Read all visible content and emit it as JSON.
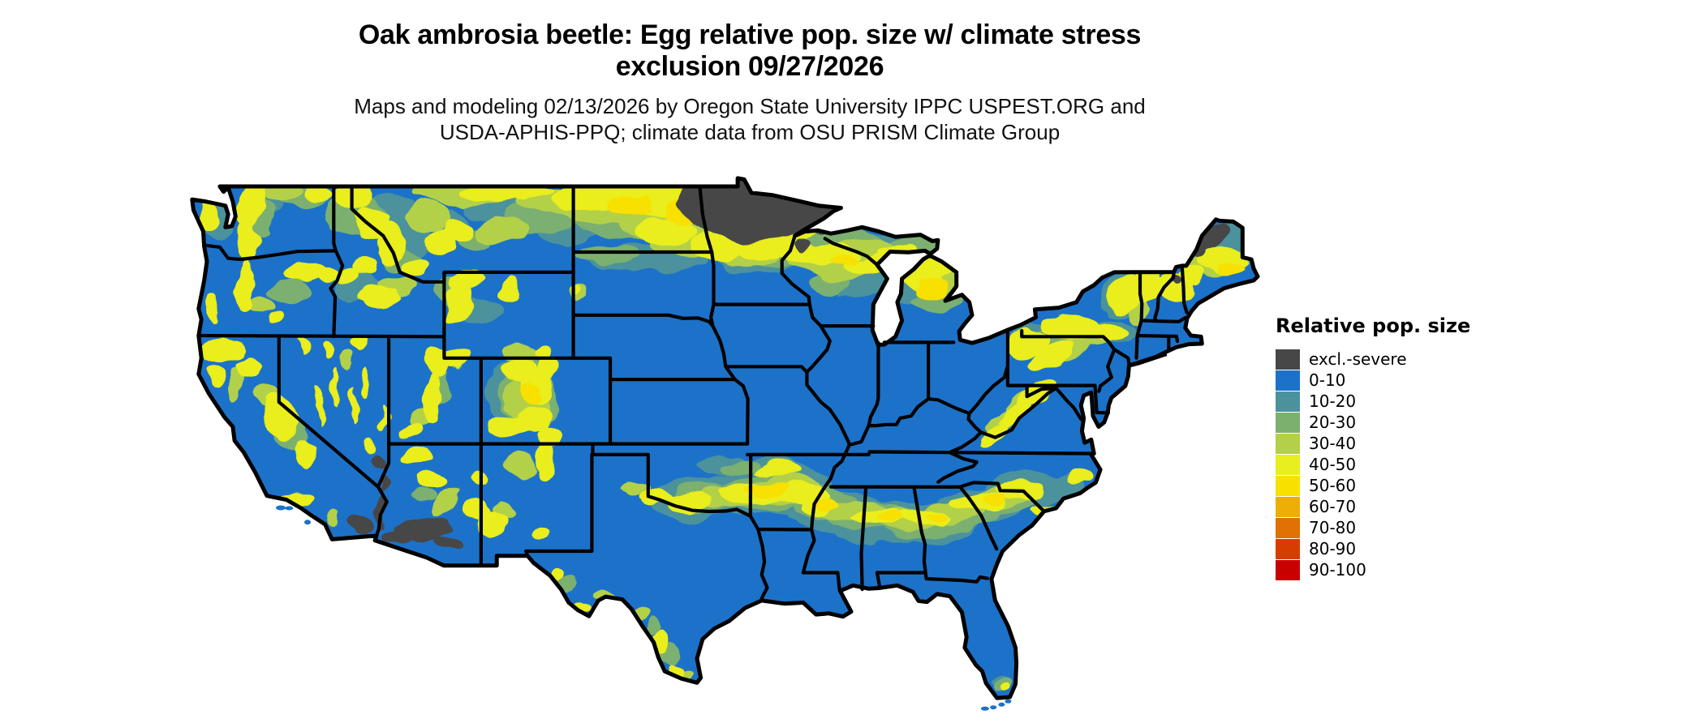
{
  "title": {
    "line1": "Oak ambrosia beetle: Egg relative pop. size w/ climate stress",
    "line2": "exclusion 09/27/2026"
  },
  "subtitle": {
    "line1": "Maps and modeling 02/13/2026 by Oregon State University IPPC USPEST.ORG and",
    "line2": "USDA-APHIS-PPQ; climate data from OSU PRISM Climate Group"
  },
  "legend": {
    "title": "Relative pop. size",
    "items": [
      {
        "label": "excl.-severe",
        "color": "#474747"
      },
      {
        "label": "0-10",
        "color": "#1C72C8"
      },
      {
        "label": "10-20",
        "color": "#4B929D"
      },
      {
        "label": "20-30",
        "color": "#7CB06F"
      },
      {
        "label": "30-40",
        "color": "#B3D048"
      },
      {
        "label": "40-50",
        "color": "#E9EE1E"
      },
      {
        "label": "50-60",
        "color": "#F8E000"
      },
      {
        "label": "60-70",
        "color": "#EFAD07"
      },
      {
        "label": "70-80",
        "color": "#E17102"
      },
      {
        "label": "80-90",
        "color": "#D63E01"
      },
      {
        "label": "90-100",
        "color": "#C90000"
      }
    ]
  },
  "map": {
    "region": "Contiguous United States",
    "kind": "raster choropleth of relative population size",
    "background": "#FFFFFF",
    "border_color": "#000000",
    "base_color": "#1C72C8",
    "class_colors": {
      "GR": "#474747",
      "B": "#1C72C8",
      "T": "#4B929D",
      "G": "#7CB06F",
      "Y2": "#B3D048",
      "Y": "#E9EE1E",
      "GO": "#F8E000",
      "O1": "#EFAD07",
      "O2": "#E17102",
      "O3": "#D63E01",
      "R": "#C90000"
    }
  }
}
